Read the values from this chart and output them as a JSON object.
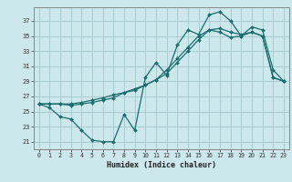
{
  "xlabel": "Humidex (Indice chaleur)",
  "xlim": [
    -0.5,
    23.5
  ],
  "ylim": [
    20.0,
    38.8
  ],
  "xticks": [
    0,
    1,
    2,
    3,
    4,
    5,
    6,
    7,
    8,
    9,
    10,
    11,
    12,
    13,
    14,
    15,
    16,
    17,
    18,
    19,
    20,
    21,
    22,
    23
  ],
  "yticks": [
    21,
    23,
    25,
    27,
    29,
    31,
    33,
    35,
    37
  ],
  "bg_color": "#cce8ec",
  "grid_color": "#aaccd0",
  "line_color": "#1a6e6e",
  "line1_y": [
    26.0,
    25.5,
    24.3,
    24.0,
    22.5,
    21.2,
    21.0,
    21.0,
    24.6,
    22.5,
    29.5,
    31.5,
    29.8,
    33.8,
    35.8,
    35.2,
    37.8,
    38.2,
    37.0,
    35.0,
    36.2,
    35.8,
    30.5,
    29.0
  ],
  "line2_y": [
    26.0,
    26.0,
    26.0,
    25.8,
    26.0,
    26.2,
    26.5,
    26.8,
    27.5,
    28.0,
    28.5,
    29.2,
    30.0,
    31.5,
    33.0,
    34.5,
    35.8,
    36.0,
    35.5,
    35.2,
    35.5,
    35.0,
    29.5,
    29.0
  ],
  "line3_y": [
    26.0,
    26.0,
    26.0,
    26.0,
    26.2,
    26.5,
    26.8,
    27.2,
    27.5,
    27.8,
    28.5,
    29.2,
    30.5,
    32.0,
    33.5,
    35.0,
    35.8,
    35.5,
    34.8,
    35.0,
    35.5,
    35.0,
    29.5,
    29.0
  ]
}
